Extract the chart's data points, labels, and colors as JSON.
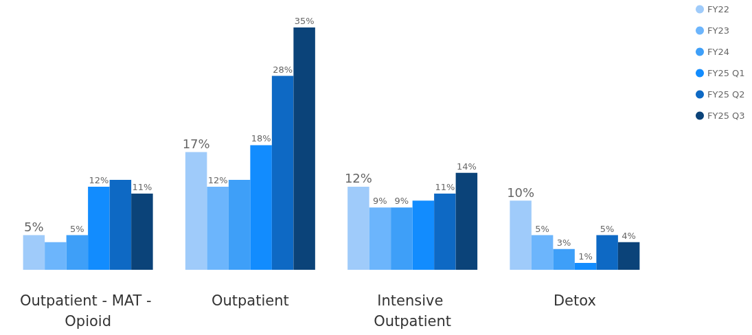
{
  "chart_data": {
    "type": "bar",
    "categories": [
      "Outpatient - MAT - Opioid",
      "Outpatient",
      "Intensive Outpatient",
      "Detox"
    ],
    "series": [
      {
        "name": "FY22",
        "color": "#9fcbfa",
        "values": [
          5,
          17,
          12,
          10
        ],
        "value_labels": [
          "5%",
          "17%",
          "12%",
          "10%"
        ]
      },
      {
        "name": "FY23",
        "color": "#6cb5fc",
        "values": [
          4,
          12,
          9,
          5
        ],
        "value_labels": [
          null,
          "12%",
          "9%",
          "5%"
        ]
      },
      {
        "name": "FY24",
        "color": "#3e9ff8",
        "values": [
          5,
          13,
          9,
          3
        ],
        "value_labels": [
          "5%",
          null,
          "9%",
          "3%"
        ]
      },
      {
        "name": "FY25 Q1",
        "color": "#128cfe",
        "values": [
          12,
          18,
          10,
          1
        ],
        "value_labels": [
          "12%",
          "18%",
          null,
          "1%"
        ]
      },
      {
        "name": "FY25 Q2",
        "color": "#0e69c4",
        "values": [
          13,
          28,
          11,
          5
        ],
        "value_labels": [
          null,
          "28%",
          "11%",
          "5%"
        ]
      },
      {
        "name": "FY25 Q3",
        "color": "#0b4379",
        "values": [
          11,
          35,
          14,
          4
        ],
        "value_labels": [
          "11%",
          "35%",
          "14%",
          "4%"
        ]
      }
    ],
    "legend": "top right"
  }
}
